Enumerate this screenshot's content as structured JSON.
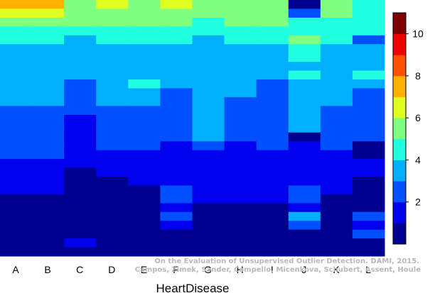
{
  "chart_data": {
    "type": "heatmap",
    "xlabel": "HeartDisease",
    "categories": [
      "A",
      "B",
      "C",
      "D",
      "E",
      "F",
      "G",
      "H",
      "I",
      "J",
      "K",
      "L"
    ],
    "n_rows": 29,
    "colorbar": {
      "min": 0,
      "max": 11,
      "ticks": [
        2,
        4,
        6,
        8,
        10
      ],
      "colors": [
        "#00008f",
        "#0000ef",
        "#0050ff",
        "#00b0ff",
        "#20ffdf",
        "#80ff80",
        "#dfff20",
        "#ffb000",
        "#ff5000",
        "#ef0000",
        "#800000"
      ]
    },
    "columns": {
      "A": [
        7,
        6,
        5,
        4,
        4,
        3,
        3,
        3,
        3,
        3,
        3,
        3,
        2,
        2,
        2,
        2,
        2,
        2,
        1,
        1,
        1,
        1,
        0,
        0,
        0,
        0,
        0,
        0,
        0
      ],
      "B": [
        7,
        6,
        5,
        4,
        4,
        3,
        3,
        3,
        3,
        3,
        3,
        3,
        2,
        2,
        2,
        2,
        2,
        2,
        1,
        1,
        1,
        1,
        0,
        0,
        0,
        0,
        0,
        0,
        0
      ],
      "C": [
        5,
        5,
        5,
        4,
        3,
        3,
        3,
        3,
        3,
        2,
        2,
        2,
        2,
        1,
        1,
        1,
        1,
        1,
        1,
        0,
        0,
        0,
        0,
        0,
        0,
        0,
        0,
        1,
        0
      ],
      "D": [
        6,
        5,
        5,
        4,
        4,
        3,
        3,
        3,
        3,
        3,
        3,
        3,
        2,
        2,
        2,
        2,
        2,
        1,
        1,
        1,
        0,
        0,
        0,
        0,
        0,
        0,
        0,
        0,
        0
      ],
      "E": [
        5,
        5,
        5,
        4,
        4,
        3,
        3,
        3,
        3,
        4,
        3,
        3,
        2,
        2,
        2,
        2,
        2,
        1,
        1,
        1,
        1,
        0,
        0,
        0,
        0,
        0,
        0,
        0,
        0
      ],
      "F": [
        6,
        5,
        5,
        4,
        4,
        3,
        3,
        3,
        3,
        3,
        2,
        2,
        2,
        2,
        2,
        2,
        1,
        1,
        1,
        1,
        1,
        2,
        2,
        1,
        2,
        1,
        0,
        0,
        0
      ],
      "G": [
        5,
        5,
        4,
        4,
        3,
        3,
        3,
        3,
        3,
        3,
        3,
        3,
        3,
        3,
        3,
        3,
        2,
        1,
        1,
        1,
        1,
        1,
        1,
        0,
        0,
        0,
        0,
        0,
        0
      ],
      "H": [
        5,
        5,
        5,
        4,
        4,
        3,
        3,
        3,
        3,
        3,
        3,
        2,
        2,
        2,
        2,
        2,
        1,
        1,
        1,
        1,
        1,
        1,
        1,
        0,
        0,
        0,
        0,
        0,
        0
      ],
      "I": [
        5,
        5,
        5,
        4,
        4,
        3,
        3,
        3,
        3,
        2,
        2,
        2,
        2,
        2,
        2,
        2,
        2,
        1,
        1,
        1,
        1,
        1,
        1,
        0,
        0,
        0,
        0,
        0,
        0
      ],
      "J": [
        0,
        2,
        4,
        4,
        5,
        4,
        4,
        3,
        4,
        3,
        3,
        3,
        3,
        3,
        3,
        0,
        1,
        1,
        1,
        1,
        1,
        2,
        2,
        1,
        3,
        2,
        0,
        0,
        0
      ],
      "K": [
        5,
        5,
        4,
        4,
        4,
        3,
        3,
        3,
        3,
        3,
        3,
        3,
        2,
        2,
        2,
        2,
        2,
        1,
        1,
        1,
        1,
        1,
        0,
        0,
        0,
        0,
        0,
        0,
        0
      ],
      "L": [
        4,
        4,
        4,
        4,
        2,
        3,
        3,
        3,
        4,
        3,
        2,
        2,
        2,
        2,
        2,
        2,
        0,
        0,
        1,
        1,
        0,
        0,
        0,
        0,
        2,
        1,
        2,
        0,
        0
      ]
    }
  },
  "credit": {
    "line1": "On the Evaluation of Unsupervised Outlier Detection. DAMI, 2015.",
    "line2": "Campos, Zimek, Sander, Campello, Micenkova, Schubert, Assent, Houle"
  }
}
